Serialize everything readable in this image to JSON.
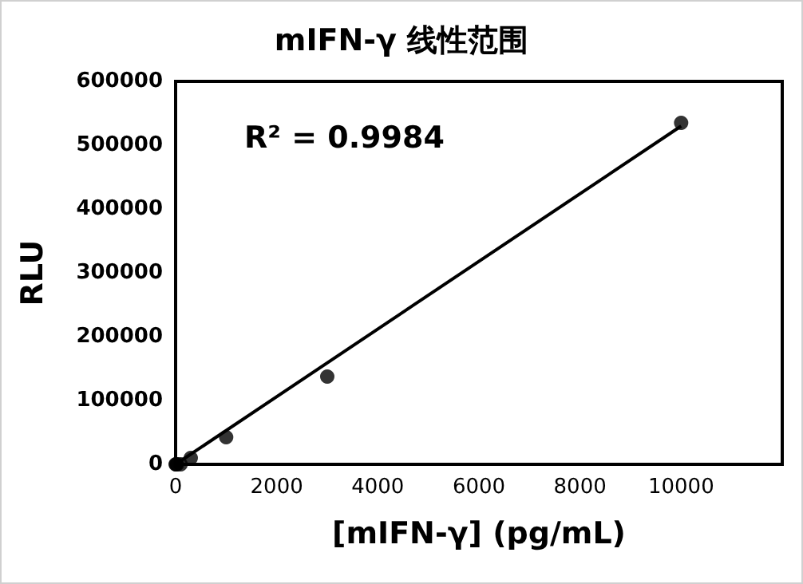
{
  "chart_data": {
    "type": "scatter",
    "title": "mIFN-γ 线性范围",
    "xlabel": "[mIFN-γ] (pg/mL)",
    "ylabel": "RLU",
    "annotations": [
      "R² = 0.9984"
    ],
    "x": [
      0,
      10,
      30,
      100,
      300,
      1000,
      3000,
      10000
    ],
    "series": [
      {
        "color": "#000000",
        "values": [
          0,
          0,
          0,
          0,
          10000,
          42500,
          137500,
          535000
        ],
        "marker": "circle"
      },
      {
        "type": "line",
        "color": "#000000",
        "x": [
          0,
          10000
        ],
        "values": [
          0,
          530000
        ],
        "marker": "none"
      }
    ],
    "xlim": [
      0,
      12000
    ],
    "xticks": [
      0,
      2000,
      4000,
      6000,
      8000,
      10000
    ],
    "ylim": [
      0,
      600000
    ],
    "yticks": [
      0,
      100000,
      200000,
      300000,
      400000,
      500000,
      600000
    ],
    "grid": false
  }
}
